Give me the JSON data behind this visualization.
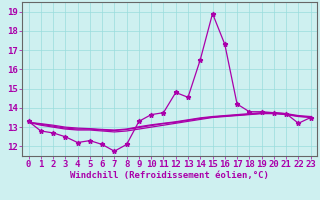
{
  "xlabel": "Windchill (Refroidissement éolien,°C)",
  "background_color": "#cef0f0",
  "line_color": "#aa00aa",
  "grid_color": "#99dddd",
  "hours": [
    0,
    1,
    2,
    3,
    4,
    5,
    6,
    7,
    8,
    9,
    10,
    11,
    12,
    13,
    14,
    15,
    16,
    17,
    18,
    19,
    20,
    21,
    22,
    23
  ],
  "line_main": [
    13.3,
    12.8,
    12.7,
    12.5,
    12.2,
    12.3,
    12.1,
    11.75,
    12.1,
    13.3,
    13.65,
    13.75,
    14.8,
    14.55,
    16.5,
    18.9,
    17.3,
    14.2,
    13.8,
    13.8,
    13.75,
    13.7,
    13.2,
    13.5
  ],
  "line_trend1": [
    13.25,
    13.1,
    13.0,
    12.9,
    12.85,
    12.85,
    12.8,
    12.75,
    12.8,
    12.9,
    13.0,
    13.1,
    13.2,
    13.3,
    13.4,
    13.5,
    13.55,
    13.6,
    13.65,
    13.7,
    13.7,
    13.65,
    13.55,
    13.5
  ],
  "line_trend2": [
    13.25,
    13.15,
    13.05,
    12.95,
    12.9,
    12.9,
    12.85,
    12.82,
    12.88,
    12.98,
    13.08,
    13.18,
    13.25,
    13.35,
    13.45,
    13.52,
    13.58,
    13.62,
    13.67,
    13.72,
    13.72,
    13.67,
    13.57,
    13.52
  ],
  "line_trend3": [
    13.25,
    13.18,
    13.1,
    13.0,
    12.95,
    12.92,
    12.88,
    12.85,
    12.9,
    13.02,
    13.12,
    13.2,
    13.28,
    13.38,
    13.48,
    13.55,
    13.6,
    13.65,
    13.7,
    13.75,
    13.75,
    13.7,
    13.6,
    13.55
  ],
  "ylim_min": 11.5,
  "ylim_max": 19.5,
  "yticks": [
    12,
    13,
    14,
    15,
    16,
    17,
    18,
    19
  ],
  "tick_fontsize": 6.5,
  "xlabel_fontsize": 6.5
}
